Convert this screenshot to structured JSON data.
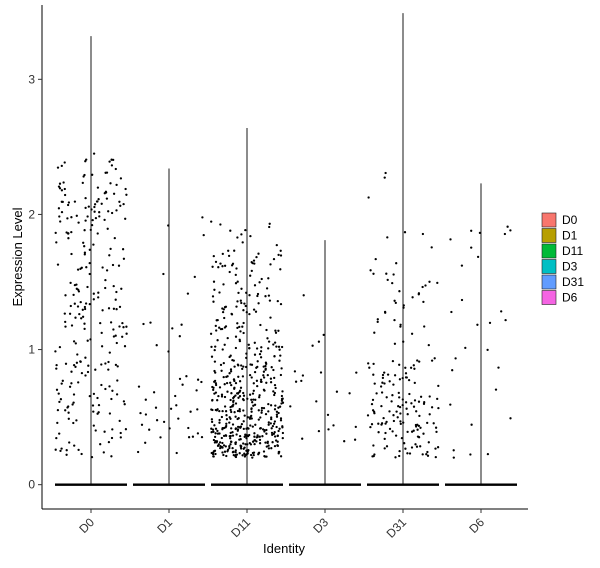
{
  "chart_data": {
    "type": "violin-jitter",
    "xlabel": "Identity",
    "ylabel": "Expression Level",
    "categories": [
      "D0",
      "D1",
      "D11",
      "D3",
      "D31",
      "D6"
    ],
    "ylim": [
      -0.18,
      3.55
    ],
    "yticks": [
      0,
      1,
      2,
      3
    ],
    "grid": false,
    "legend": {
      "position": "right",
      "entries": [
        {
          "label": "D0",
          "color": "#F8766D"
        },
        {
          "label": "D1",
          "color": "#B79F00"
        },
        {
          "label": "D11",
          "color": "#00BA38"
        },
        {
          "label": "D3",
          "color": "#00BFC4"
        },
        {
          "label": "D31",
          "color": "#619CFF"
        },
        {
          "label": "D6",
          "color": "#F564E3"
        }
      ]
    },
    "groups": [
      {
        "name": "D0",
        "max": 3.32,
        "nonzero_points": 260,
        "dist": [
          0.12,
          0.14,
          0.12,
          0.1,
          0.13,
          0.09,
          0.07,
          0.14,
          0.09
        ]
      },
      {
        "name": "D1",
        "max": 2.34,
        "nonzero_points": 45,
        "dist": [
          0.2,
          0.18,
          0.14,
          0.12,
          0.12,
          0.1,
          0.08,
          0.06,
          0.0
        ]
      },
      {
        "name": "D11",
        "max": 2.64,
        "nonzero_points": 540,
        "dist": [
          0.34,
          0.26,
          0.15,
          0.1,
          0.07,
          0.05,
          0.03,
          0.0,
          0.0
        ]
      },
      {
        "name": "D3",
        "max": 1.81,
        "nonzero_points": 22,
        "dist": [
          0.3,
          0.25,
          0.2,
          0.15,
          0.1,
          0.0,
          0.0,
          0.0,
          0.0
        ]
      },
      {
        "name": "D31",
        "max": 3.49,
        "nonzero_points": 175,
        "dist": [
          0.3,
          0.27,
          0.18,
          0.1,
          0.06,
          0.04,
          0.03,
          0.01,
          0.01
        ]
      },
      {
        "name": "D6",
        "max": 2.23,
        "nonzero_points": 28,
        "dist": [
          0.22,
          0.2,
          0.16,
          0.14,
          0.12,
          0.08,
          0.08,
          0.0,
          0.0
        ]
      }
    ]
  }
}
